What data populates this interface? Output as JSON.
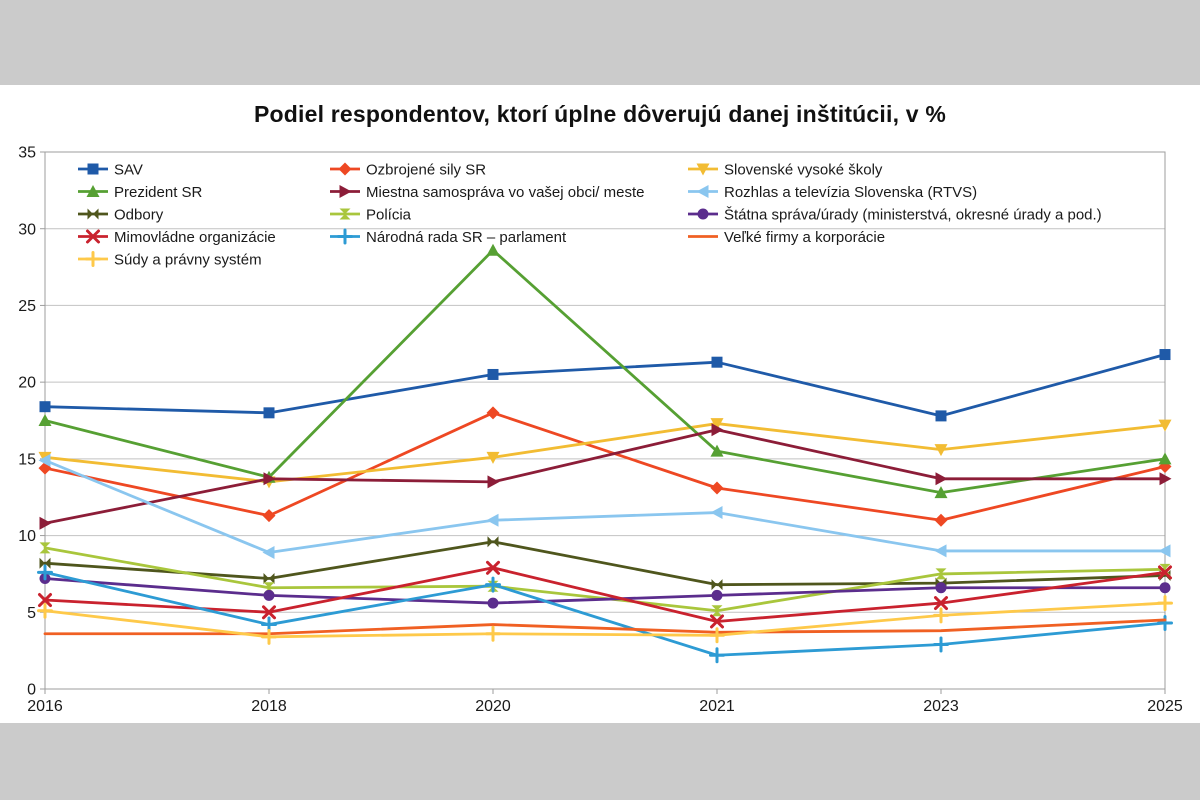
{
  "page": {
    "title": "Podiel respondentov, ktorí úplne dôverujú danej inštitúcii, v %"
  },
  "chart_data": {
    "type": "line",
    "title": "Podiel respondentov, ktorí úplne dôverujú danej inštitúcii, v %",
    "xlabel": "",
    "ylabel": "",
    "categories": [
      "2016",
      "2018",
      "2020",
      "2021",
      "2023",
      "2025"
    ],
    "ylim": [
      0,
      35
    ],
    "ytick_interval": 5,
    "yticks": [
      0,
      5,
      10,
      15,
      20,
      25,
      30,
      35
    ],
    "grid": true,
    "legend_position": "inside-top-left",
    "legend_columns": 3,
    "series": [
      {
        "name": "SAV",
        "color": "#1f5aa8",
        "marker": "square",
        "values": [
          18.4,
          18.0,
          20.5,
          21.3,
          17.8,
          21.8
        ]
      },
      {
        "name": "Ozbrojené sily SR",
        "color": "#ee4823",
        "marker": "diamond",
        "values": [
          14.4,
          11.3,
          18.0,
          13.1,
          11.0,
          14.5
        ]
      },
      {
        "name": "Slovenské vysoké školy",
        "color": "#f2bc33",
        "marker": "arrow-down",
        "values": [
          15.1,
          13.5,
          15.1,
          17.3,
          15.6,
          17.2
        ]
      },
      {
        "name": "Prezident SR",
        "color": "#56a033",
        "marker": "triangle-up",
        "values": [
          17.5,
          13.8,
          28.6,
          15.5,
          12.8,
          15.0
        ]
      },
      {
        "name": "Miestna samospráva vo vašej obci/ meste",
        "color": "#8c1d38",
        "marker": "arrow-right",
        "values": [
          10.8,
          13.7,
          13.5,
          16.9,
          13.7,
          13.7
        ]
      },
      {
        "name": "Rozhlas a televízia Slovenska (RTVS)",
        "color": "#8ac6ef",
        "marker": "arrow-left",
        "values": [
          14.9,
          8.9,
          11.0,
          11.5,
          9.0,
          9.0
        ]
      },
      {
        "name": "Odbory",
        "color": "#4f561d",
        "marker": "bowtie",
        "values": [
          8.2,
          7.2,
          9.6,
          6.8,
          6.9,
          7.4
        ]
      },
      {
        "name": "Polícia",
        "color": "#a9c63c",
        "marker": "hourglass",
        "values": [
          9.2,
          6.6,
          6.7,
          5.1,
          7.5,
          7.8
        ]
      },
      {
        "name": "Štátna správa/úrady (ministerstvá, okresné úrady a pod.)",
        "color": "#5b2d8d",
        "marker": "circle",
        "values": [
          7.2,
          6.1,
          5.6,
          6.1,
          6.6,
          6.6
        ]
      },
      {
        "name": "Mimovládne organizácie",
        "color": "#c9222e",
        "marker": "x",
        "values": [
          5.8,
          5.0,
          7.9,
          4.4,
          5.6,
          7.6
        ]
      },
      {
        "name": "Národná rada SR – parlament",
        "color": "#2d9bd4",
        "marker": "plus",
        "values": [
          7.6,
          4.2,
          6.8,
          2.2,
          2.9,
          4.3
        ]
      },
      {
        "name": "Veľké firmy a korporácie",
        "color": "#f06023",
        "marker": "none",
        "values": [
          3.6,
          3.6,
          4.2,
          3.7,
          3.8,
          4.5
        ]
      },
      {
        "name": "Súdy a právny systém",
        "color": "#fec94a",
        "marker": "plus",
        "values": [
          5.1,
          3.4,
          3.6,
          3.5,
          4.8,
          5.6
        ]
      }
    ],
    "style": {
      "grid_color": "#c2c2c2",
      "border_color": "#9d9d9d",
      "tick_label_color": "#1a1a1a",
      "legend_text_color": "#1a1a1a",
      "background_band_color": "#cbcbcb"
    }
  }
}
